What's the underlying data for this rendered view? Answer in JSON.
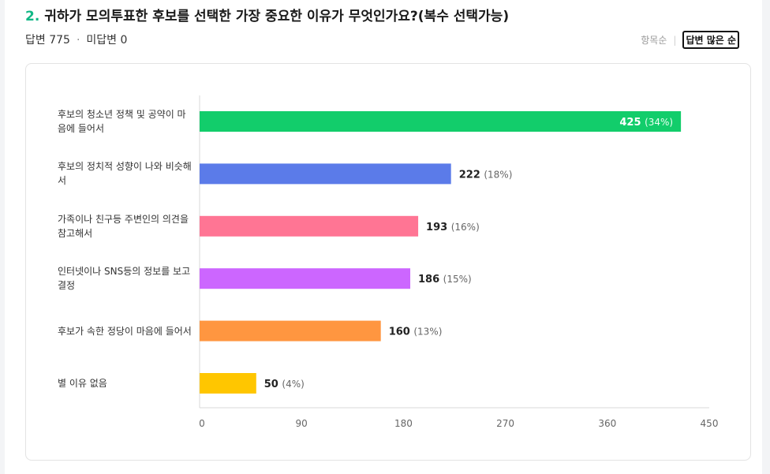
{
  "question": {
    "number": "2.",
    "title": "귀하가 모의투표한 후보를 선택한 가장 중요한 이유가 무엇인가요?(복수 선택가능)"
  },
  "meta": {
    "answered_label": "답변 775",
    "separator": "·",
    "unanswered_label": "미답변 0"
  },
  "sort": {
    "option_item_order": "항목순",
    "separator": "|",
    "option_most_answers": "답변 많은 순",
    "active": "option_most_answers"
  },
  "chart_data": {
    "type": "bar",
    "orientation": "horizontal",
    "categories": [
      "후보의 청소년 정책 및 공약이 마음에 들어서",
      "후보의 정치적 성향이 나와 비슷해서",
      "가족이나 친구등 주변인의 의견을 참고해서",
      "인터넷이나 SNS등의 정보를 보고 결정",
      "후보가 속한 정당이 마음에 들어서",
      "별 이유 없음"
    ],
    "values": [
      425,
      222,
      193,
      186,
      160,
      50
    ],
    "percent_labels": [
      "(34%)",
      "(18%)",
      "(16%)",
      "(15%)",
      "(13%)",
      "(4%)"
    ],
    "colors": [
      "#12cd6b",
      "#5b7be9",
      "#ff7594",
      "#cc66ff",
      "#ff9640",
      "#ffc600"
    ],
    "xlim": [
      0,
      450
    ],
    "xticks": [
      0,
      90,
      180,
      270,
      360,
      450
    ],
    "grid": false,
    "legend": "none"
  }
}
